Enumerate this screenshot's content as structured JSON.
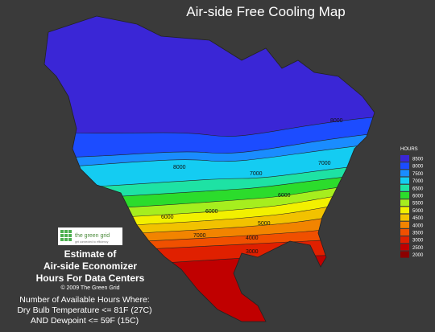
{
  "header": {
    "title": "Air-side Free Cooling Map"
  },
  "logo": {
    "name": "the green grid",
    "tagline": "get connected to efficiency"
  },
  "caption": {
    "line1": "Estimate of",
    "line2": "Air-side Economizer",
    "line3": "Hours For Data Centers",
    "copyright": "© 2009 The Green Grid"
  },
  "note": {
    "line1": "Number of Available Hours Where:",
    "line2": "Dry Bulb Temperature <= 81F (27C)",
    "line3": "AND Dewpoint <= 59F (15C)"
  },
  "legend": {
    "title": "HOURS",
    "items": [
      {
        "value": 8500,
        "color": "#3a26d6"
      },
      {
        "value": 8000,
        "color": "#1c4cff"
      },
      {
        "value": 7500,
        "color": "#1a8cff"
      },
      {
        "value": 7000,
        "color": "#14ccf2"
      },
      {
        "value": 6500,
        "color": "#1ee2a4"
      },
      {
        "value": 6000,
        "color": "#2cdc2c"
      },
      {
        "value": 5500,
        "color": "#a6ee1e"
      },
      {
        "value": 5000,
        "color": "#f2f000"
      },
      {
        "value": 4500,
        "color": "#f2c200"
      },
      {
        "value": 4000,
        "color": "#f28400"
      },
      {
        "value": 3500,
        "color": "#f05000"
      },
      {
        "value": 3000,
        "color": "#e02000"
      },
      {
        "value": 2500,
        "color": "#c00000"
      },
      {
        "value": 2000,
        "color": "#8c0000"
      }
    ]
  },
  "contour_labels": [
    "8000",
    "7000",
    "7000",
    "8000",
    "6000",
    "6000",
    "7000",
    "5000",
    "4000",
    "3000",
    "6000"
  ]
}
